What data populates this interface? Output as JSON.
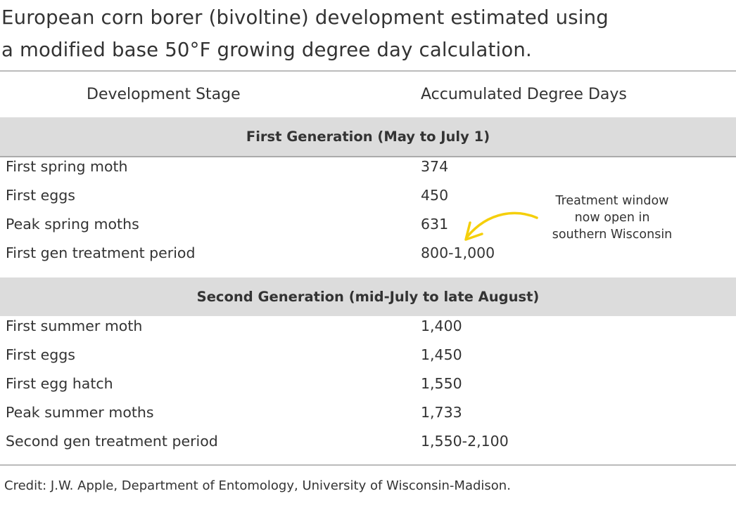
{
  "title_line1": "European corn borer (bivoltine) development estimated using",
  "title_line2": "a modified base 50°F growing degree day calculation.",
  "columns": [
    "Development Stage",
    "Accumulated Degree Days"
  ],
  "sections": [
    {
      "heading": "First Generation (May to July 1)",
      "rows": [
        {
          "stage": "First spring moth",
          "value": "374"
        },
        {
          "stage": "First eggs",
          "value": "450"
        },
        {
          "stage": "Peak spring moths",
          "value": "631"
        },
        {
          "stage": "First gen treatment period",
          "value": "800-1,000"
        }
      ]
    },
    {
      "heading": "Second Generation (mid-July to late August)",
      "rows": [
        {
          "stage": "First summer moth",
          "value": "1,400"
        },
        {
          "stage": "First eggs",
          "value": "1,450"
        },
        {
          "stage": "First egg hatch",
          "value": "1,550"
        },
        {
          "stage": "Peak summer moths",
          "value": "1,733"
        },
        {
          "stage": "Second gen treatment period",
          "value": "1,550-2,100"
        }
      ]
    }
  ],
  "annotation": {
    "lines": [
      "Treatment window",
      "now open in",
      "southern Wisconsin"
    ],
    "arrow_color": "#f5cf0a"
  },
  "credit": "Credit:  J.W. Apple, Department of Entomology, University of Wisconsin-Madison."
}
